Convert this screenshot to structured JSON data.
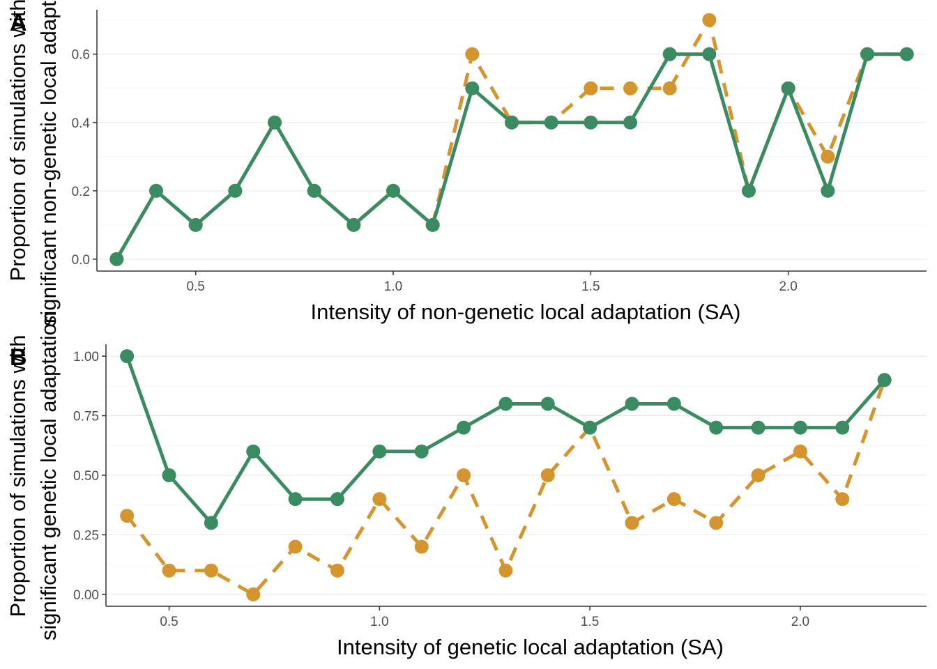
{
  "colors": {
    "series_solid": "#3a8a62",
    "series_dashed": "#d4952e"
  },
  "chart_data": [
    {
      "type": "line",
      "panel_tag": "A",
      "xlabel": "Intensity of non-genetic local adaptation (SA)",
      "ylabel_lines": [
        "Proportion of simulations with",
        "significant non-genetic local adaptation"
      ],
      "xlim": [
        0.25,
        2.35
      ],
      "ylim": [
        -0.035,
        0.73
      ],
      "x_ticks": [
        0.5,
        1.0,
        1.5,
        2.0
      ],
      "x_tick_labels": [
        "0.5",
        "1.0",
        "1.5",
        "2.0"
      ],
      "y_ticks": [
        0.0,
        0.2,
        0.4,
        0.6
      ],
      "y_tick_labels": [
        "0.0",
        "0.2",
        "0.4",
        "0.6"
      ],
      "grid": true,
      "series": [
        {
          "style": "dashed",
          "x": [
            0.3,
            0.4,
            0.5,
            0.6,
            0.7,
            0.8,
            0.9,
            1.0,
            1.1,
            1.2,
            1.3,
            1.4,
            1.5,
            1.6,
            1.7,
            1.8,
            1.9,
            2.0,
            2.1,
            2.2,
            2.3
          ],
          "y": [
            0.0,
            0.2,
            0.1,
            0.2,
            0.4,
            0.2,
            0.1,
            0.2,
            0.1,
            0.6,
            0.4,
            0.4,
            0.5,
            0.5,
            0.5,
            0.7,
            0.2,
            0.5,
            0.3,
            0.6,
            0.6
          ]
        },
        {
          "style": "solid",
          "x": [
            0.3,
            0.4,
            0.5,
            0.6,
            0.7,
            0.8,
            0.9,
            1.0,
            1.1,
            1.2,
            1.3,
            1.4,
            1.5,
            1.6,
            1.7,
            1.8,
            1.9,
            2.0,
            2.1,
            2.2,
            2.3
          ],
          "y": [
            0.0,
            0.2,
            0.1,
            0.2,
            0.4,
            0.2,
            0.1,
            0.2,
            0.1,
            0.5,
            0.4,
            0.4,
            0.4,
            0.4,
            0.6,
            0.6,
            0.2,
            0.5,
            0.2,
            0.6,
            0.6
          ]
        }
      ]
    },
    {
      "type": "line",
      "panel_tag": "B",
      "xlabel": "Intensity of genetic local adaptation (SA)",
      "ylabel_lines": [
        "Proportion of simulations with",
        "significant genetic local adaptation"
      ],
      "xlim": [
        0.35,
        2.3
      ],
      "ylim": [
        -0.05,
        1.05
      ],
      "x_ticks": [
        0.5,
        1.0,
        1.5,
        2.0
      ],
      "x_tick_labels": [
        "0.5",
        "1.0",
        "1.5",
        "2.0"
      ],
      "y_ticks": [
        0.0,
        0.25,
        0.5,
        0.75,
        1.0
      ],
      "y_tick_labels": [
        "0.00",
        "0.25",
        "0.50",
        "0.75",
        "1.00"
      ],
      "grid": true,
      "series": [
        {
          "style": "dashed",
          "x": [
            0.4,
            0.5,
            0.6,
            0.7,
            0.8,
            0.9,
            1.0,
            1.1,
            1.2,
            1.3,
            1.4,
            1.5,
            1.6,
            1.7,
            1.8,
            1.9,
            2.0,
            2.1,
            2.2
          ],
          "y": [
            0.33,
            0.1,
            0.1,
            0.0,
            0.2,
            0.1,
            0.4,
            0.2,
            0.5,
            0.1,
            0.5,
            0.7,
            0.3,
            0.4,
            0.3,
            0.5,
            0.6,
            0.4,
            0.9
          ]
        },
        {
          "style": "solid",
          "x": [
            0.4,
            0.5,
            0.6,
            0.7,
            0.8,
            0.9,
            1.0,
            1.1,
            1.2,
            1.3,
            1.4,
            1.5,
            1.6,
            1.7,
            1.8,
            1.9,
            2.0,
            2.1,
            2.2
          ],
          "y": [
            1.0,
            0.5,
            0.3,
            0.6,
            0.4,
            0.4,
            0.6,
            0.6,
            0.7,
            0.8,
            0.8,
            0.7,
            0.8,
            0.8,
            0.7,
            0.7,
            0.7,
            0.7,
            0.9
          ]
        }
      ]
    }
  ]
}
